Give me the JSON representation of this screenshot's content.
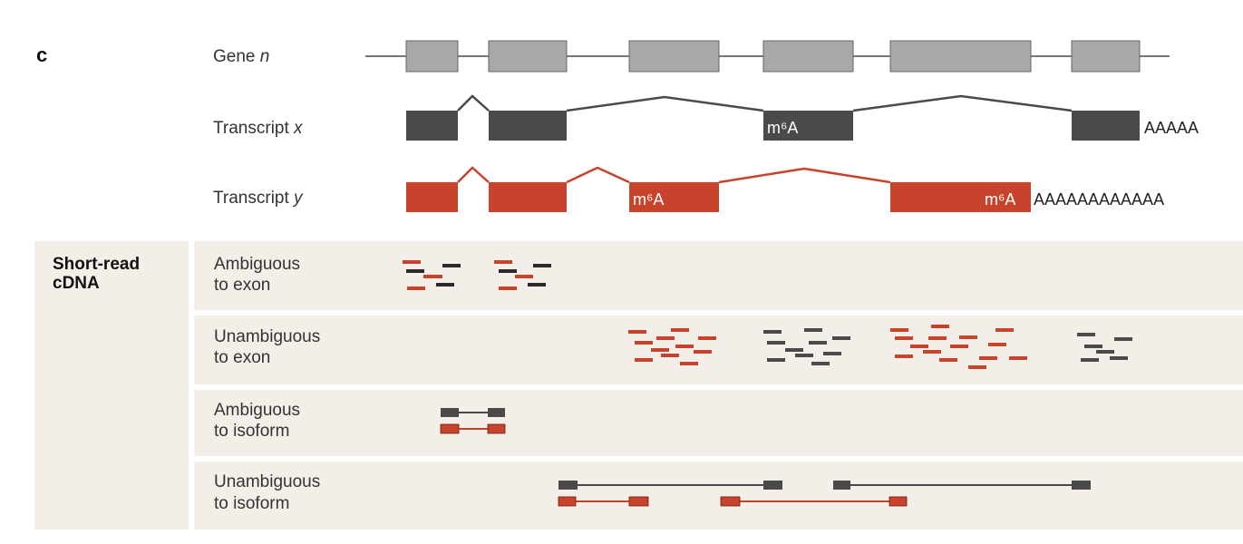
{
  "panel": {
    "letter": "c"
  },
  "tracks": {
    "gene": {
      "prefix": "Gene ",
      "name": "n"
    },
    "transcript_x": {
      "prefix": "Transcript ",
      "name": "x",
      "mod_label": "m⁶A",
      "polya": "AAAAA"
    },
    "transcript_y": {
      "prefix": "Transcript ",
      "name": "y",
      "mod_label_1": "m⁶A",
      "mod_label_2": "m⁶A",
      "polya": "AAAAAAAAAAAA"
    }
  },
  "section": {
    "title_line1": "Short-read",
    "title_line2": "cDNA"
  },
  "rows": [
    {
      "line1": "Ambiguous",
      "line2": "to exon"
    },
    {
      "line1": "Unambiguous",
      "line2": "to exon"
    },
    {
      "line1": "Ambiguous",
      "line2": "to isoform"
    },
    {
      "line1": "Unambiguous",
      "line2": "to isoform"
    }
  ],
  "colors": {
    "gene_exon": "#a8a8a8",
    "transcript_x": "#4a4a4a",
    "transcript_y": "#c8432b",
    "read_dark": "#2a2a2a",
    "read_red": "#c8432b",
    "panel_bg": "#f3efe8",
    "line_gray": "#777777"
  }
}
